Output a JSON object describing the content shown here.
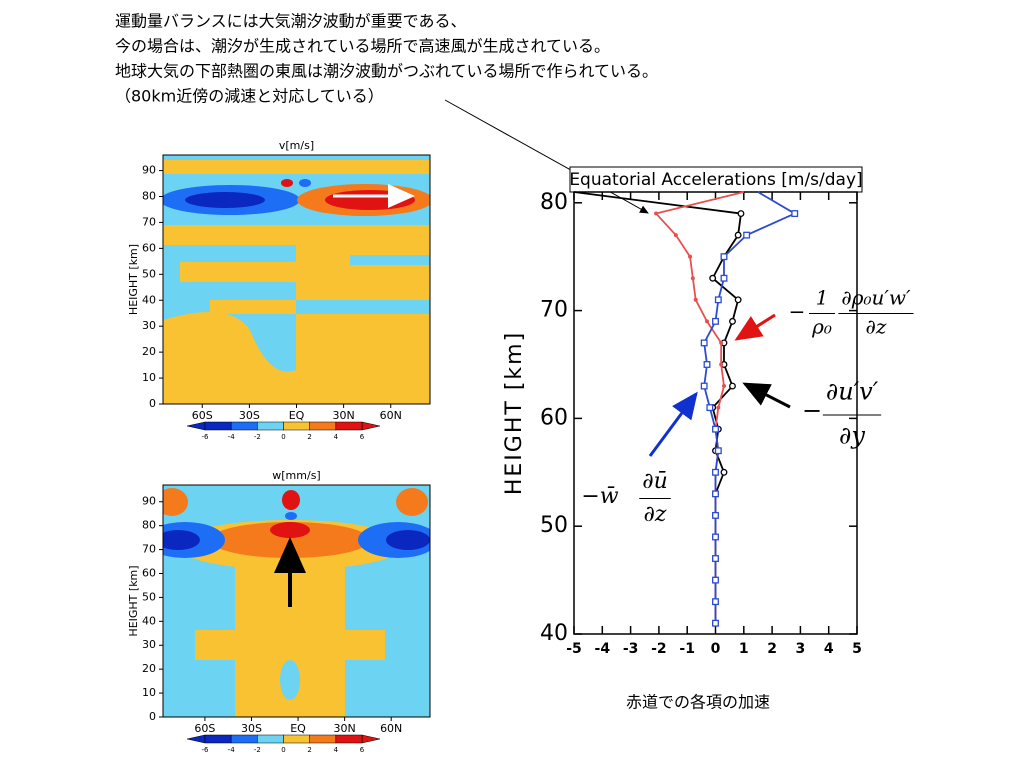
{
  "notes": [
    "運動量バランスには大気潮汐波動が重要である、",
    "今の場合は、潮汐が生成されている場所で高速風が生成されている。",
    "地球大気の下部熱圏の東風は潮汐波動がつぶれている場所で作られている。",
    "（80km近傍の減速と対応している）"
  ],
  "caption": "赤道での各項の加速",
  "formulas": [
    {
      "prefix": "−",
      "fractions": [
        [
          "1",
          "ρ₀"
        ],
        [
          "∂ρ₀u′w′",
          "∂z"
        ]
      ]
    },
    {
      "prefix": "−",
      "fractions": [
        [
          "∂u′v′",
          "∂y"
        ]
      ]
    },
    {
      "prefix": "−w̄",
      "fractions": [
        [
          "∂ū",
          "∂z"
        ]
      ]
    }
  ],
  "chart_data": [
    {
      "type": "contour",
      "title": "v[m/s]",
      "ylabel": "HEIGHT [km]",
      "xlim": [
        -85,
        85
      ],
      "ylim": [
        0,
        96
      ],
      "xticks": [
        {
          "value": -60,
          "label": "60S"
        },
        {
          "value": -30,
          "label": "30S"
        },
        {
          "value": 0,
          "label": "EQ"
        },
        {
          "value": 30,
          "label": "30N"
        },
        {
          "value": 60,
          "label": "60N"
        }
      ],
      "yticks": [
        0,
        10,
        20,
        30,
        40,
        50,
        60,
        70,
        80,
        90
      ],
      "levels": [
        -6,
        -4,
        -2,
        0,
        2,
        4,
        6
      ],
      "colors": [
        "#0a28c0",
        "#1e6ef5",
        "#6cd3f2",
        "#f9c232",
        "#f47a1c",
        "#e01212"
      ]
    },
    {
      "type": "contour",
      "title": "w[mm/s]",
      "ylabel": "HEIGHT [km]",
      "xlim": [
        -87,
        85
      ],
      "ylim": [
        0,
        97
      ],
      "xticks": [
        {
          "value": -60,
          "label": "60S"
        },
        {
          "value": -30,
          "label": "30S"
        },
        {
          "value": 0,
          "label": "EQ"
        },
        {
          "value": 30,
          "label": "30N"
        },
        {
          "value": 60,
          "label": "60N"
        }
      ],
      "yticks": [
        0,
        10,
        20,
        30,
        40,
        50,
        60,
        70,
        80,
        90
      ],
      "levels": [
        -6,
        -4,
        -2,
        0,
        2,
        4,
        6
      ],
      "colors": [
        "#0a28c0",
        "#1e6ef5",
        "#6cd3f2",
        "#f9c232",
        "#f47a1c",
        "#e01212"
      ]
    },
    {
      "type": "line",
      "title": "Equatorial Accelerations [m/s/day]",
      "ylabel": "HEIGHT [km]",
      "xlim": [
        -5,
        5
      ],
      "ylim": [
        40,
        81
      ],
      "xticks": [
        -5,
        -4,
        -3,
        -2,
        -1,
        0,
        1,
        2,
        3,
        4,
        5
      ],
      "yticks": [
        40,
        50,
        60,
        70,
        80
      ],
      "heights": [
        81,
        79,
        77,
        75,
        73,
        71,
        69,
        67,
        65,
        63,
        61,
        59,
        57,
        55,
        53,
        51,
        49,
        47,
        45,
        43,
        41
      ],
      "series": [
        {
          "color": "#000000",
          "marker": "circle",
          "values": [
            -5,
            0.9,
            0.8,
            0.3,
            -0.1,
            0.8,
            0.6,
            0.3,
            0.3,
            0.6,
            -0.1,
            0.1,
            0,
            0.3,
            0,
            0,
            0,
            0,
            0,
            0,
            0
          ]
        },
        {
          "color": "#e85050",
          "marker": "dot",
          "values": [
            1.0,
            -2.1,
            -1.4,
            -0.9,
            -0.8,
            -0.7,
            -0.3,
            0.2,
            0.2,
            0.3,
            0.1,
            0,
            0.1,
            0,
            0,
            0,
            0,
            0,
            0,
            0,
            0
          ]
        },
        {
          "color": "#2a4cd0",
          "marker": "square",
          "values": [
            1.5,
            2.8,
            1.1,
            0.3,
            0.3,
            0.1,
            0,
            -0.4,
            -0.3,
            -0.4,
            -0.2,
            0,
            0.1,
            0,
            0,
            0,
            0,
            0,
            0,
            0,
            0
          ]
        }
      ]
    }
  ]
}
